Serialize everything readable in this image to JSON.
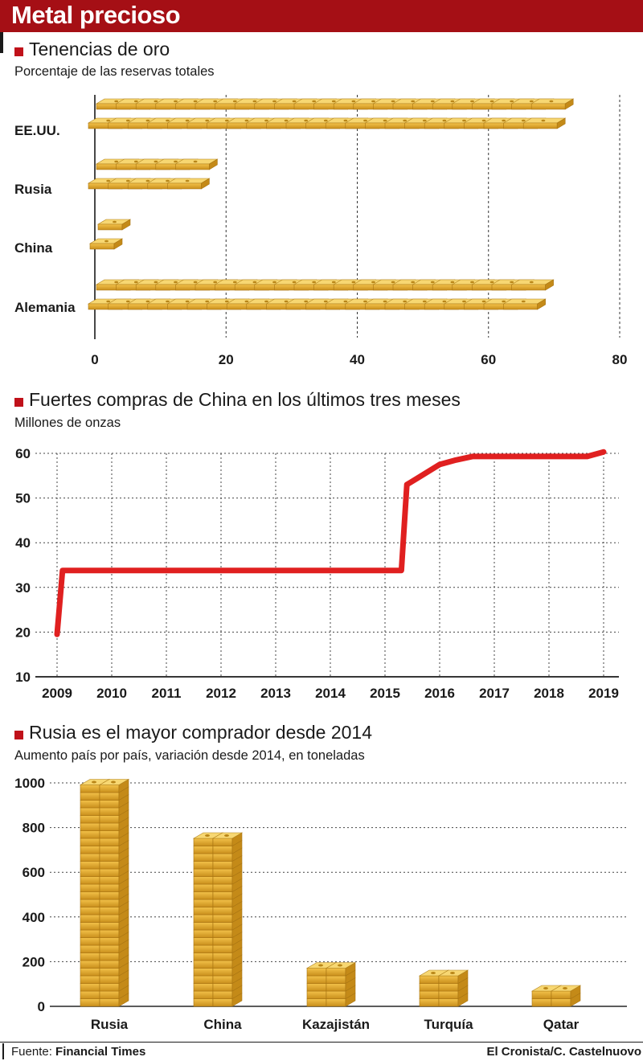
{
  "header": {
    "title": "Metal precioso"
  },
  "chart_data": [
    {
      "type": "bar",
      "orientation": "horizontal",
      "title": "Tenencias de oro",
      "subtitle": "Porcentaje de las  reservas totales",
      "categories": [
        "EE.UU.",
        "Rusia",
        "China",
        "Alemania"
      ],
      "values": [
        75,
        20,
        5,
        72
      ],
      "xlim": [
        0,
        80
      ],
      "xticks": [
        "0",
        "20",
        "40",
        "60",
        "80"
      ],
      "grid": "vertical dashed",
      "mark_style": "gold bars"
    },
    {
      "type": "line",
      "title": "Fuertes compras de China en los últimos tres meses",
      "subtitle": "Millones de onzas",
      "x": [
        2009.0,
        2009.1,
        2015.3,
        2015.4,
        2015.6,
        2016.0,
        2016.3,
        2016.6,
        2017.0,
        2018.0,
        2018.7,
        2019.0
      ],
      "y": [
        19.5,
        33.8,
        33.8,
        53,
        54.5,
        57.5,
        58.5,
        59.3,
        59.3,
        59.3,
        59.3,
        60.3
      ],
      "xticks": [
        "2009",
        "2010",
        "2011",
        "2012",
        "2013",
        "2014",
        "2015",
        "2016",
        "2017",
        "2018",
        "2019"
      ],
      "yticks": [
        "10",
        "20",
        "30",
        "40",
        "50",
        "60"
      ],
      "xlim": [
        2009,
        2019
      ],
      "ylim": [
        10,
        60
      ],
      "grid": "dotted",
      "line_color": "#e02020"
    },
    {
      "type": "bar",
      "title": "Rusia es el mayor comprador desde 2014",
      "subtitle": "Aumento país por país, variación desde 2014, en toneladas",
      "categories": [
        "Rusia",
        "China",
        "Kazajistán",
        "Turquía",
        "Qatar"
      ],
      "values": [
        980,
        760,
        170,
        140,
        60
      ],
      "ylim": [
        0,
        1000
      ],
      "yticks": [
        "0",
        "200",
        "400",
        "600",
        "800",
        "1000"
      ],
      "grid": "horizontal dotted",
      "mark_style": "stacked gold bars"
    }
  ],
  "footer": {
    "source_label": "Fuente:",
    "source": "Financial Times",
    "credit": "El Cronista/C. Castelnuovo"
  }
}
